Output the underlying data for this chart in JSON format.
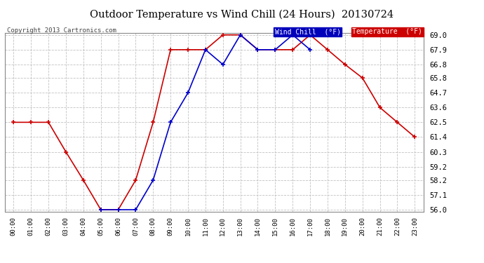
{
  "title": "Outdoor Temperature vs Wind Chill (24 Hours)  20130724",
  "copyright": "Copyright 2013 Cartronics.com",
  "background_color": "#ffffff",
  "plot_bg_color": "#ffffff",
  "grid_color": "#bbbbbb",
  "x_labels": [
    "00:00",
    "01:00",
    "02:00",
    "03:00",
    "04:00",
    "05:00",
    "06:00",
    "07:00",
    "08:00",
    "09:00",
    "10:00",
    "11:00",
    "12:00",
    "13:00",
    "14:00",
    "15:00",
    "16:00",
    "17:00",
    "18:00",
    "19:00",
    "20:00",
    "21:00",
    "22:00",
    "23:00"
  ],
  "temp_values": [
    62.5,
    62.5,
    62.5,
    60.3,
    58.2,
    56.0,
    56.0,
    58.2,
    62.5,
    67.9,
    67.9,
    67.9,
    69.0,
    69.0,
    67.9,
    67.9,
    67.9,
    69.0,
    67.9,
    66.8,
    65.8,
    63.6,
    62.5,
    61.4
  ],
  "wind_values": [
    null,
    null,
    null,
    null,
    null,
    56.0,
    56.0,
    56.0,
    58.2,
    62.5,
    64.7,
    67.9,
    66.8,
    69.0,
    67.9,
    67.9,
    69.0,
    67.9,
    null,
    null,
    null,
    null,
    null,
    null
  ],
  "temp_color": "#cc0000",
  "wind_color": "#0000cc",
  "temp_label": "Temperature (°F)",
  "wind_label": "Wind Chill (°F)",
  "ylim_min": 56.0,
  "ylim_max": 69.0,
  "yticks": [
    56.0,
    57.1,
    58.2,
    59.2,
    60.3,
    61.4,
    62.5,
    63.6,
    64.7,
    65.8,
    66.8,
    67.9,
    69.0
  ],
  "wind_legend_label": "Wind Chill  (°F)",
  "temp_legend_label": "Temperature  (°F)",
  "legend_wind_bg": "#0000bb",
  "legend_temp_bg": "#cc0000"
}
